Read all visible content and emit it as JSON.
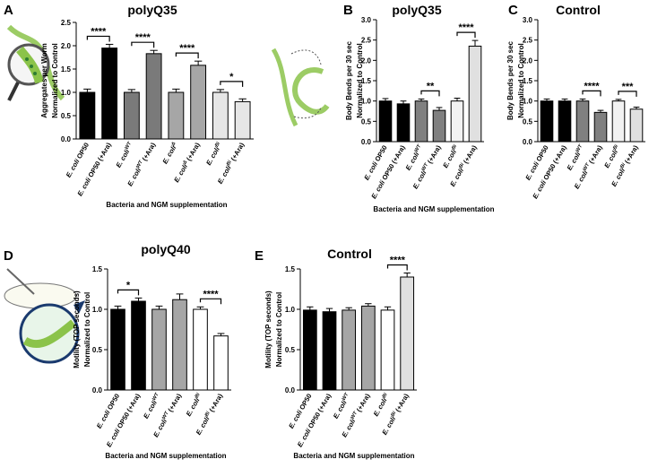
{
  "chart_data": [
    {
      "type": "bar",
      "panel": "A",
      "title": "polyQ35",
      "ylabel": [
        "Aggregates per Worm",
        "Normalized to Control"
      ],
      "xlabel": "Bacteria and NGM supplementation",
      "categories": [
        {
          "base": "E. coli",
          "tail": "OP50"
        },
        {
          "base": "E. coli",
          "tail": "OP50 (+Ara)"
        },
        {
          "base": "E. coli",
          "sup": "WT"
        },
        {
          "base": "E. coli",
          "sup": "WT",
          "tail": "(+Ara)"
        },
        {
          "base": "E. coli",
          "sup": "Δ"
        },
        {
          "base": "E. coli",
          "sup": "Δ",
          "tail": "(+Ara)"
        },
        {
          "base": "E. coli",
          "sup": "Bi"
        },
        {
          "base": "E. coli",
          "sup": "Bi",
          "tail": "(+Ara)"
        }
      ],
      "values": [
        1.0,
        1.95,
        1.0,
        1.83,
        1.0,
        1.58,
        1.0,
        0.8
      ],
      "errors": [
        0.07,
        0.08,
        0.06,
        0.07,
        0.07,
        0.09,
        0.06,
        0.06
      ],
      "colors": [
        "#000000",
        "#000000",
        "#7a7a7a",
        "#7a7a7a",
        "#a6a6a6",
        "#a6a6a6",
        "#e6e6e6",
        "#e6e6e6"
      ],
      "significance": [
        "****",
        "****",
        "****",
        "*"
      ],
      "ylim": [
        0,
        2.5
      ],
      "yticks": [
        {
          "value": 0,
          "label": "0.0"
        },
        0.5,
        {
          "value": 1,
          "label": "1.0"
        },
        1.5,
        {
          "value": 2,
          "label": "2.0"
        },
        2.5
      ]
    },
    {
      "type": "bar",
      "panel": "B",
      "title": "polyQ35",
      "ylabel": [
        "Body Bends per 30 sec",
        "Normalized to Control"
      ],
      "xlabel": "Bacteria and NGM supplementation",
      "categories": [
        {
          "base": "E. coli",
          "tail": "OP50"
        },
        {
          "base": "E. coli",
          "tail": "OP50 (+Ara)"
        },
        {
          "base": "E. coli",
          "sup": "WT"
        },
        {
          "base": "E. coli",
          "sup": "WT",
          "tail": "(+Ara)"
        },
        {
          "base": "E. coli",
          "sup": "Bi"
        },
        {
          "base": "E. coli",
          "sup": "Bi",
          "tail": "(+Ara)"
        }
      ],
      "values": [
        1.0,
        0.93,
        1.0,
        0.77,
        1.0,
        2.35
      ],
      "errors": [
        0.06,
        0.07,
        0.05,
        0.07,
        0.07,
        0.14
      ],
      "colors": [
        "#000000",
        "#000000",
        "#808080",
        "#808080",
        "#f2f2f2",
        "#e0e0e0"
      ],
      "significance": [
        null,
        "**",
        "****"
      ],
      "ylim": [
        0,
        3
      ],
      "yticks": [
        {
          "value": 0,
          "label": "0.0"
        },
        0.5,
        {
          "value": 1,
          "label": "1.0"
        },
        1.5,
        {
          "value": 2,
          "label": "2.0"
        },
        2.5,
        {
          "value": 3,
          "label": "3.0"
        }
      ]
    },
    {
      "type": "bar",
      "panel": "C",
      "title": "Control",
      "ylabel": [
        "Body Bends per 30 sec",
        "Normalized to Control"
      ],
      "categories": [
        {
          "base": "E. coli",
          "tail": "OP50"
        },
        {
          "base": "E. coli",
          "tail": "OP50 (+Ara)"
        },
        {
          "base": "E. coli",
          "sup": "WT"
        },
        {
          "base": "E. coli",
          "sup": "WT",
          "tail": "(+Ara)"
        },
        {
          "base": "E. coli",
          "sup": "Bi"
        },
        {
          "base": "E. coli",
          "sup": "Bi",
          "tail": "(+Ara)"
        }
      ],
      "values": [
        1.0,
        1.0,
        1.0,
        0.72,
        1.0,
        0.8
      ],
      "errors": [
        0.05,
        0.05,
        0.05,
        0.05,
        0.04,
        0.05
      ],
      "colors": [
        "#000000",
        "#000000",
        "#808080",
        "#808080",
        "#f2f2f2",
        "#e0e0e0"
      ],
      "significance": [
        null,
        "****",
        "***"
      ],
      "ylim": [
        0,
        3
      ],
      "yticks": [
        {
          "value": 0,
          "label": "0.0"
        },
        0.5,
        {
          "value": 1,
          "label": "1.0"
        },
        1.5,
        {
          "value": 2,
          "label": "2.0"
        },
        2.5,
        {
          "value": 3,
          "label": "3.0"
        }
      ]
    },
    {
      "type": "bar",
      "panel": "D",
      "title": "polyQ40",
      "ylabel": [
        "Motility (TOP seconds)",
        "Normalized to Control"
      ],
      "xlabel": "Bacteria and NGM supplementation",
      "categories": [
        {
          "base": "E. coli",
          "tail": "OP50"
        },
        {
          "base": "E. coli",
          "tail": "OP50 (+Ara)"
        },
        {
          "base": "E. coli",
          "sup": "WT"
        },
        {
          "base": "E. coli",
          "sup": "WT",
          "tail": "(+Ara)"
        },
        {
          "base": "E. coli",
          "sup": "Bi"
        },
        {
          "base": "E. coli",
          "sup": "Bi",
          "tail": "(+Ara)"
        }
      ],
      "values": [
        1.0,
        1.1,
        1.0,
        1.12,
        1.0,
        0.67
      ],
      "errors": [
        0.04,
        0.04,
        0.04,
        0.07,
        0.03,
        0.03
      ],
      "colors": [
        "#000000",
        "#000000",
        "#a6a6a6",
        "#a6a6a6",
        "#ffffff",
        "#ffffff"
      ],
      "significance": [
        "*",
        null,
        "****"
      ],
      "ylim": [
        0,
        1.5
      ],
      "yticks": [
        {
          "value": 0,
          "label": "0.0"
        },
        0.5,
        {
          "value": 1,
          "label": "1.0"
        },
        1.5
      ]
    },
    {
      "type": "bar",
      "panel": "E",
      "title": "Control",
      "ylabel": [
        "Motility (TOP seconds)",
        "Normalized to Control"
      ],
      "xlabel": "Bacteria and NGM supplementation",
      "categories": [
        {
          "base": "E. coli",
          "tail": "OP50"
        },
        {
          "base": "E. coli",
          "tail": "OP50 (+Ara)"
        },
        {
          "base": "E. coli",
          "sup": "WT"
        },
        {
          "base": "E. coli",
          "sup": "WT",
          "tail": "(+Ara)"
        },
        {
          "base": "E. coli",
          "sup": "Bi"
        },
        {
          "base": "E. coli",
          "sup": "Bi",
          "tail": "(+Ara)"
        }
      ],
      "values": [
        0.99,
        0.97,
        0.99,
        1.04,
        0.99,
        1.4
      ],
      "errors": [
        0.04,
        0.04,
        0.03,
        0.03,
        0.04,
        0.05
      ],
      "colors": [
        "#000000",
        "#000000",
        "#a6a6a6",
        "#a6a6a6",
        "#ffffff",
        "#e0e0e0"
      ],
      "significance": [
        null,
        null,
        "****"
      ],
      "ylim": [
        0,
        1.5
      ],
      "yticks": [
        {
          "value": 0,
          "label": "0.0"
        },
        0.5,
        {
          "value": 1,
          "label": "1.0"
        },
        1.5
      ]
    }
  ]
}
